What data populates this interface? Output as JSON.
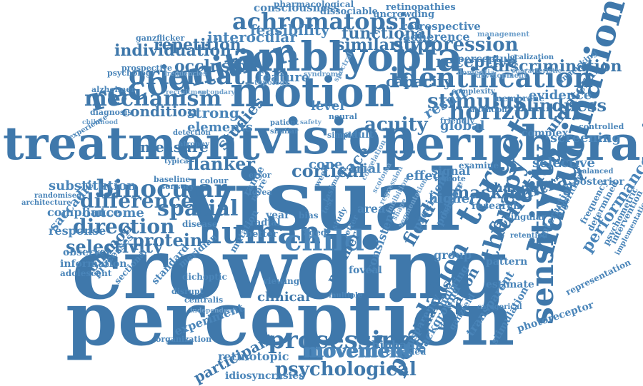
{
  "word_cloud": {
    "color": "#4a85b9",
    "words": [
      "crowding",
      "perception",
      "visual",
      "vision",
      "motion",
      "treatment",
      "peripheral",
      "amblyopia",
      "recognition",
      "orientation",
      "identification",
      "human",
      "child",
      "hallucination",
      "binocular",
      "sensitivity",
      "spatial",
      "target",
      "processing",
      "horizontal",
      "mechanism",
      "population",
      "function",
      "achromatopsia",
      "psychological",
      "movement",
      "difference",
      "direction",
      "cortical",
      "flanker",
      "stimulus",
      "therapy",
      "performance",
      "selectivity",
      "protein",
      "suppression",
      "individuation",
      "occlusion",
      "feasibility",
      "functional",
      "similarity",
      "repetition",
      "interocular",
      "consciousness",
      "retinopathies",
      "dissociable",
      "uncrowding",
      "retrospective",
      "adherence",
      "receptive",
      "discrimination",
      "capacity",
      "blindness",
      "evidence",
      "acuity",
      "global",
      "measure",
      "studies",
      "condition",
      "strong",
      "elements",
      "feature",
      "level",
      "result",
      "contrast",
      "masking",
      "field",
      "variation",
      "unilateral",
      "screening",
      "selective",
      "substitution",
      "compliance",
      "outcome",
      "saccadic",
      "response",
      "observer",
      "common",
      "information",
      "adolescent",
      "processes",
      "sectional",
      "standard",
      "experiment",
      "organization",
      "participant",
      "retinotopic",
      "idiosyncrasies",
      "biobank",
      "crowded",
      "movement",
      "photoreceptor",
      "representation",
      "estimate",
      "pattern",
      "group",
      "transparent",
      "stimulation",
      "background",
      "transparency",
      "analysis",
      "ganzfeld",
      "blurring",
      "categorical",
      "interaction",
      "frequency",
      "determined",
      "psychometric",
      "intervention",
      "implementation",
      "controlled",
      "complex",
      "perceptual",
      "localization",
      "dementia",
      "development",
      "characteristic",
      "management",
      "pharmacological",
      "ganzflicker",
      "prospective",
      "psychology",
      "frequencies",
      "alzheimer",
      "diagnosis",
      "childhood",
      "experience",
      "recruitment",
      "secondary",
      "detection",
      "atrophy",
      "typical",
      "baseline",
      "sensory",
      "randomised",
      "architecture",
      "colour",
      "disease",
      "better",
      "radial",
      "more",
      "year",
      "face",
      "trial",
      "cone",
      "effect",
      "adult",
      "simple",
      "neural",
      "safety",
      "patient",
      "similar",
      "error",
      "fovea",
      "range",
      "aged",
      "bias",
      "area",
      "mutation",
      "dichoptic",
      "meridian",
      "disrupt",
      "centralis",
      "clinical",
      "viewing",
      "multiple",
      "independent",
      "number",
      "foveal",
      "consistent",
      "precision",
      "higher",
      "signal",
      "remote",
      "examine",
      "change",
      "balance",
      "position",
      "research",
      "posterior",
      "balanced",
      "singular",
      "retention",
      "algorithm",
      "membrane",
      "attention",
      "complexity",
      "unmasking",
      "friendly",
      "study",
      "letter",
      "test",
      "week",
      "task",
      "image",
      "spectral",
      "topology",
      "syndrome",
      "correlation",
      "scotoma",
      "regression",
      "inhibition",
      "shape",
      "segmentation",
      "mask"
    ]
  }
}
